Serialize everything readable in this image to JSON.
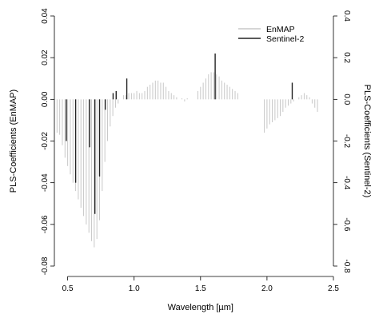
{
  "chart_data": {
    "type": "bar",
    "xlabel": "Wavelength [µm]",
    "ylabel_left": "PLS-Coefficients (EnMAP)",
    "ylabel_right": "PLS-Coefficients (Sentinel-2)",
    "xlim": [
      0.4,
      2.5
    ],
    "ylim_left": [
      -0.08,
      0.04
    ],
    "ylim_right": [
      -0.8,
      0.4
    ],
    "x_ticks": [
      0.5,
      1.0,
      1.5,
      2.0,
      2.5
    ],
    "x_tick_labels": [
      "0.5",
      "1.0",
      "1.5",
      "2.0",
      "2.5"
    ],
    "y_left_ticks": [
      -0.08,
      -0.06,
      -0.04,
      -0.02,
      0.0,
      0.02,
      0.04
    ],
    "y_left_tick_labels": [
      "-0.08",
      "-0.06",
      "-0.04",
      "-0.02",
      "0.00",
      "0.02",
      "0.04"
    ],
    "y_right_ticks": [
      -0.8,
      -0.6,
      -0.4,
      -0.2,
      0.0,
      0.2,
      0.4
    ],
    "y_right_tick_labels": [
      "-0.8",
      "-0.6",
      "-0.4",
      "-0.2",
      "0.0",
      "0.2",
      "0.4"
    ],
    "legend_position": "top-right",
    "grid": false,
    "series": [
      {
        "name": "EnMAP",
        "axis": "left",
        "color": "#c8c8c8",
        "x": [
          0.42,
          0.44,
          0.46,
          0.48,
          0.5,
          0.52,
          0.54,
          0.56,
          0.58,
          0.6,
          0.62,
          0.64,
          0.66,
          0.68,
          0.7,
          0.72,
          0.74,
          0.76,
          0.78,
          0.8,
          0.82,
          0.84,
          0.86,
          0.88,
          0.9,
          0.92,
          0.94,
          0.96,
          0.98,
          1.0,
          1.02,
          1.04,
          1.06,
          1.08,
          1.1,
          1.12,
          1.14,
          1.16,
          1.18,
          1.2,
          1.22,
          1.24,
          1.26,
          1.28,
          1.3,
          1.32,
          1.36,
          1.38,
          1.4,
          1.48,
          1.5,
          1.52,
          1.54,
          1.56,
          1.58,
          1.6,
          1.62,
          1.64,
          1.66,
          1.68,
          1.7,
          1.72,
          1.74,
          1.76,
          1.78,
          1.98,
          2.0,
          2.02,
          2.04,
          2.06,
          2.08,
          2.1,
          2.12,
          2.14,
          2.16,
          2.18,
          2.2,
          2.22,
          2.24,
          2.26,
          2.28,
          2.3,
          2.32,
          2.34,
          2.36,
          2.38
        ],
        "values": [
          -0.016,
          -0.017,
          -0.022,
          -0.028,
          -0.032,
          -0.036,
          -0.04,
          -0.044,
          -0.048,
          -0.052,
          -0.056,
          -0.06,
          -0.064,
          -0.068,
          -0.071,
          -0.067,
          -0.058,
          -0.044,
          -0.03,
          -0.02,
          -0.013,
          -0.008,
          -0.004,
          -0.002,
          0.0,
          0.002,
          0.002,
          0.003,
          0.003,
          0.003,
          0.004,
          0.003,
          0.003,
          0.004,
          0.006,
          0.007,
          0.008,
          0.009,
          0.009,
          0.008,
          0.008,
          0.006,
          0.004,
          0.003,
          0.002,
          0.001,
          0.0005,
          -0.001,
          0.0005,
          0.004,
          0.006,
          0.008,
          0.01,
          0.012,
          0.013,
          0.013,
          0.012,
          0.011,
          0.009,
          0.008,
          0.007,
          0.006,
          0.005,
          0.004,
          0.003,
          -0.016,
          -0.014,
          -0.012,
          -0.011,
          -0.01,
          -0.009,
          -0.008,
          -0.006,
          -0.004,
          -0.003,
          -0.002,
          -0.001,
          0.0,
          0.001,
          0.002,
          0.003,
          0.002,
          0.001,
          -0.002,
          -0.004,
          -0.006
        ]
      },
      {
        "name": "Sentinel-2",
        "axis": "right",
        "color": "#222222",
        "x": [
          0.49,
          0.56,
          0.665,
          0.705,
          0.74,
          0.783,
          0.842,
          0.865,
          0.945,
          1.61,
          2.19
        ],
        "values": [
          -0.2,
          -0.4,
          -0.23,
          -0.55,
          -0.37,
          -0.05,
          0.03,
          0.04,
          0.1,
          0.22,
          0.08
        ]
      }
    ]
  }
}
